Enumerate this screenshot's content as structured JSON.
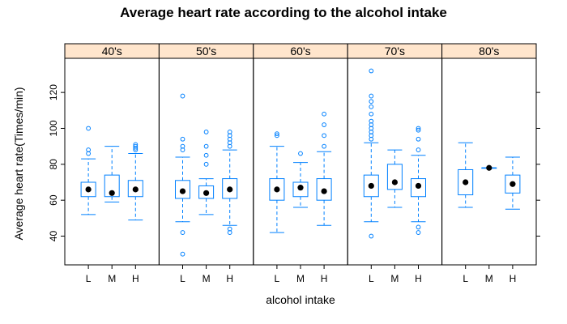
{
  "chart_data": {
    "type": "box",
    "title": "Average heart rate according to the alcohol intake",
    "xlabel": "alcohol intake",
    "ylabel": "Average heart rate(Times/min)",
    "ylim": [
      24,
      139
    ],
    "yticks": [
      40,
      60,
      80,
      100,
      120
    ],
    "categories": [
      "L",
      "M",
      "H"
    ],
    "panels": [
      {
        "label": "40's",
        "boxes": [
          {
            "category": "L",
            "whisker_low": 52,
            "q1": 62,
            "median": 66,
            "q3": 70,
            "whisker_high": 83,
            "outliers": [
              86,
              88,
              100
            ]
          },
          {
            "category": "M",
            "whisker_low": 59,
            "q1": 62,
            "median": 64,
            "q3": 74,
            "whisker_high": 90,
            "outliers": []
          },
          {
            "category": "H",
            "whisker_low": 49,
            "q1": 62,
            "median": 66,
            "q3": 71,
            "whisker_high": 86,
            "outliers": [
              88,
              89,
              90,
              91
            ]
          }
        ]
      },
      {
        "label": "50's",
        "boxes": [
          {
            "category": "L",
            "whisker_low": 48,
            "q1": 61,
            "median": 65,
            "q3": 71,
            "whisker_high": 84,
            "outliers": [
              30,
              42,
              88,
              90,
              94,
              118
            ]
          },
          {
            "category": "M",
            "whisker_low": 52,
            "q1": 61,
            "median": 64,
            "q3": 68,
            "whisker_high": 72,
            "outliers": [
              80,
              85,
              90,
              98
            ]
          },
          {
            "category": "H",
            "whisker_low": 46,
            "q1": 61,
            "median": 66,
            "q3": 72,
            "whisker_high": 88,
            "outliers": [
              42,
              44,
              90,
              92,
              94,
              96,
              98
            ]
          }
        ]
      },
      {
        "label": "60's",
        "boxes": [
          {
            "category": "L",
            "whisker_low": 42,
            "q1": 60,
            "median": 66,
            "q3": 72,
            "whisker_high": 90,
            "outliers": [
              96,
              97
            ]
          },
          {
            "category": "M",
            "whisker_low": 56,
            "q1": 62,
            "median": 67,
            "q3": 70,
            "whisker_high": 81,
            "outliers": [
              86
            ]
          },
          {
            "category": "H",
            "whisker_low": 46,
            "q1": 60,
            "median": 65,
            "q3": 72,
            "whisker_high": 87,
            "outliers": [
              90,
              96,
              102,
              108
            ]
          }
        ]
      },
      {
        "label": "70's",
        "boxes": [
          {
            "category": "L",
            "whisker_low": 48,
            "q1": 62,
            "median": 68,
            "q3": 74,
            "whisker_high": 92,
            "outliers": [
              40,
              94,
              96,
              98,
              100,
              102,
              104,
              108,
              112,
              115,
              118,
              132
            ]
          },
          {
            "category": "M",
            "whisker_low": 56,
            "q1": 66,
            "median": 70,
            "q3": 80,
            "whisker_high": 88,
            "outliers": []
          },
          {
            "category": "H",
            "whisker_low": 48,
            "q1": 62,
            "median": 68,
            "q3": 72,
            "whisker_high": 85,
            "outliers": [
              42,
              45,
              88,
              94,
              99,
              100
            ]
          }
        ]
      },
      {
        "label": "80's",
        "boxes": [
          {
            "category": "L",
            "whisker_low": 56,
            "q1": 63,
            "median": 70,
            "q3": 77,
            "whisker_high": 92,
            "outliers": []
          },
          {
            "category": "M",
            "whisker_low": 78,
            "q1": 78,
            "median": 78,
            "q3": 78,
            "whisker_high": 78,
            "outliers": []
          },
          {
            "category": "H",
            "whisker_low": 55,
            "q1": 64,
            "median": 69,
            "q3": 74,
            "whisker_high": 84,
            "outliers": []
          }
        ]
      }
    ],
    "colors": {
      "box": "#0080ff",
      "strip_fill": "#ffe5cc",
      "median": "#000000",
      "frame": "#000000"
    },
    "grid": false,
    "legend": "none"
  }
}
